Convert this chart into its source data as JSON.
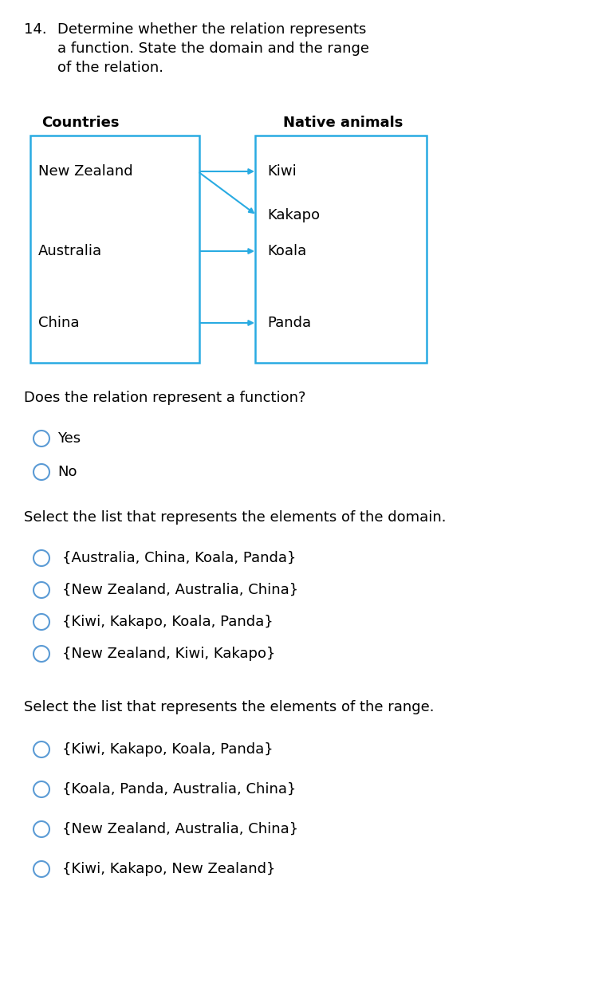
{
  "bg_color": "#ffffff",
  "question_number": "14.",
  "question_text_line1": "Determine whether the relation represents",
  "question_text_line2": "a function. State the domain and the range",
  "question_text_line3": "of the relation.",
  "col1_header": "Countries",
  "col2_header": "Native animals",
  "col1_items": [
    "New Zealand",
    "Australia",
    "China"
  ],
  "col2_items": [
    "Kiwi",
    "Kakapo",
    "Koala",
    "Panda"
  ],
  "box_color": "#29ABE2",
  "arrow_color": "#29ABE2",
  "text_color": "#000000",
  "function_question": "Does the relation represent a function?",
  "function_options": [
    "Yes",
    "No"
  ],
  "domain_question": "Select the list that represents the elements of the domain.",
  "domain_options": [
    "{Australia, China, Koala, Panda}",
    "{New Zealand, Australia, China}",
    "{Kiwi, Kakapo, Koala, Panda}",
    "{New Zealand, Kiwi, Kakapo}"
  ],
  "range_question": "Select the list that represents the elements of the range.",
  "range_options": [
    "{Kiwi, Kakapo, Koala, Panda}",
    "{Koala, Panda, Australia, China}",
    "{New Zealand, Australia, China}",
    "{Kiwi, Kakapo, New Zealand}"
  ],
  "circle_color": "#5B9BD5",
  "fig_width": 7.7,
  "fig_height": 12.58,
  "dpi": 100
}
